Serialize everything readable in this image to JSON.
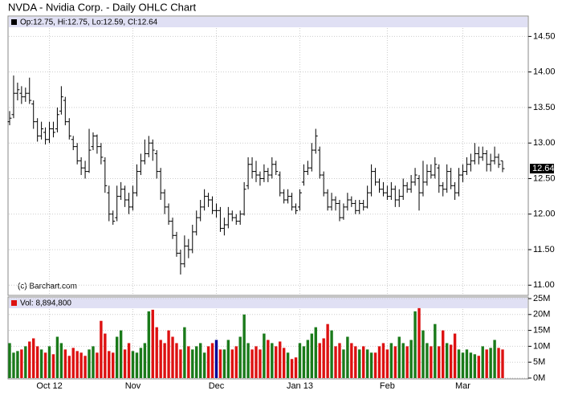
{
  "chart_data": {
    "type": "ohlc",
    "title": "NVDA - Nvidia Corp. - Daily OHLC Chart",
    "header": "Op:12.75, Hi:12.75, Lo:12.59, Cl:12.64",
    "credit": "(c) Barchart.com",
    "volume_header": "Vol: 8,894,800",
    "last_price": 12.64,
    "ylim": [
      10.89,
      14.64
    ],
    "yticks": [
      {
        "value": 11,
        "label": "11.00"
      },
      {
        "value": 11.5,
        "label": "11.50"
      },
      {
        "value": 12,
        "label": "12.00"
      },
      {
        "value": 12.5,
        "label": "12.50"
      },
      {
        "value": 13,
        "label": "13.00"
      },
      {
        "value": 13.5,
        "label": "13.50"
      },
      {
        "value": 14,
        "label": "14.00"
      },
      {
        "value": 14.5,
        "label": "14.50"
      }
    ],
    "vlim": [
      0,
      25
    ],
    "vticks": [
      {
        "value": 0,
        "label": "0M"
      },
      {
        "value": 5,
        "label": "5M"
      },
      {
        "value": 10,
        "label": "10M"
      },
      {
        "value": 15,
        "label": "15M"
      },
      {
        "value": 20,
        "label": "20M"
      },
      {
        "value": 25,
        "label": "25M"
      }
    ],
    "grid": true,
    "up_color": "#1a7a1a",
    "down_color": "#dd1111",
    "flat_color": "#000099",
    "categories": [
      null,
      null,
      null,
      null,
      null,
      null,
      null,
      null,
      null,
      null,
      "Oct 12",
      null,
      null,
      null,
      null,
      null,
      null,
      null,
      null,
      null,
      null,
      null,
      null,
      null,
      null,
      null,
      null,
      null,
      null,
      null,
      null,
      "Nov",
      null,
      null,
      null,
      null,
      null,
      null,
      null,
      null,
      null,
      null,
      null,
      null,
      null,
      null,
      null,
      null,
      null,
      null,
      null,
      null,
      "Dec",
      null,
      null,
      null,
      null,
      null,
      null,
      null,
      null,
      null,
      null,
      null,
      null,
      null,
      null,
      null,
      null,
      null,
      null,
      null,
      null,
      "Jan 13",
      null,
      null,
      null,
      null,
      null,
      null,
      null,
      null,
      null,
      null,
      null,
      null,
      null,
      null,
      null,
      null,
      null,
      null,
      null,
      null,
      null,
      "Feb",
      null,
      null,
      null,
      null,
      null,
      null,
      null,
      null,
      null,
      null,
      null,
      null,
      null,
      null,
      null,
      null,
      null,
      null,
      "Mar",
      null,
      null,
      null,
      null,
      null,
      null,
      null,
      null,
      null,
      null
    ],
    "ohlc": [
      [
        13.3,
        13.45,
        13.25,
        13.35
      ],
      [
        13.4,
        13.95,
        13.35,
        13.7
      ],
      [
        13.7,
        13.85,
        13.6,
        13.75
      ],
      [
        13.7,
        13.8,
        13.55,
        13.65
      ],
      [
        13.65,
        13.78,
        13.58,
        13.7
      ],
      [
        13.7,
        13.92,
        13.55,
        13.6
      ],
      [
        13.55,
        13.6,
        13.2,
        13.3
      ],
      [
        13.3,
        13.35,
        13.02,
        13.1
      ],
      [
        13.1,
        13.3,
        13.05,
        13.2
      ],
      [
        13.15,
        13.22,
        12.98,
        13.05
      ],
      [
        13.05,
        13.3,
        13.0,
        13.2
      ],
      [
        13.2,
        13.3,
        13.08,
        13.15
      ],
      [
        13.2,
        13.5,
        13.15,
        13.4
      ],
      [
        13.45,
        13.8,
        13.4,
        13.65
      ],
      [
        13.6,
        13.65,
        13.25,
        13.3
      ],
      [
        13.3,
        13.35,
        13.05,
        13.1
      ],
      [
        13.05,
        13.1,
        12.9,
        12.95
      ],
      [
        12.95,
        13.0,
        12.7,
        12.75
      ],
      [
        12.75,
        12.8,
        12.55,
        12.65
      ],
      [
        12.65,
        12.75,
        12.5,
        12.6
      ],
      [
        12.6,
        13.2,
        12.58,
        12.9
      ],
      [
        12.95,
        13.15,
        12.9,
        13.1
      ],
      [
        13.1,
        13.12,
        12.85,
        12.95
      ],
      [
        12.95,
        13.0,
        12.7,
        12.8
      ],
      [
        12.75,
        12.8,
        12.3,
        12.4
      ],
      [
        12.3,
        12.4,
        11.9,
        12.0
      ],
      [
        12.0,
        12.05,
        11.85,
        11.9
      ],
      [
        11.95,
        12.4,
        11.9,
        12.25
      ],
      [
        12.25,
        12.45,
        12.2,
        12.35
      ],
      [
        12.35,
        12.4,
        12.1,
        12.2
      ],
      [
        12.2,
        12.3,
        12.0,
        12.1
      ],
      [
        12.1,
        12.4,
        12.05,
        12.3
      ],
      [
        12.3,
        12.7,
        12.25,
        12.6
      ],
      [
        12.6,
        12.85,
        12.55,
        12.75
      ],
      [
        12.75,
        13.05,
        12.7,
        12.85
      ],
      [
        12.85,
        13.1,
        12.8,
        13.0
      ],
      [
        13.0,
        13.05,
        12.75,
        12.9
      ],
      [
        12.85,
        12.9,
        12.5,
        12.6
      ],
      [
        12.6,
        12.65,
        12.2,
        12.3
      ],
      [
        12.3,
        12.35,
        12.0,
        12.1
      ],
      [
        12.1,
        12.15,
        11.85,
        11.9
      ],
      [
        11.9,
        11.95,
        11.65,
        11.7
      ],
      [
        11.7,
        11.75,
        11.4,
        11.45
      ],
      [
        11.45,
        11.5,
        11.15,
        11.3
      ],
      [
        11.3,
        11.7,
        11.25,
        11.55
      ],
      [
        11.55,
        11.65,
        11.38,
        11.5
      ],
      [
        11.5,
        11.85,
        11.45,
        11.75
      ],
      [
        11.75,
        12.05,
        11.7,
        11.95
      ],
      [
        11.95,
        12.2,
        11.9,
        12.1
      ],
      [
        12.1,
        12.35,
        12.05,
        12.25
      ],
      [
        12.25,
        12.3,
        12.1,
        12.2
      ],
      [
        12.2,
        12.25,
        12.0,
        12.05
      ],
      [
        12.05,
        12.15,
        11.95,
        12.05
      ],
      [
        12.05,
        12.1,
        11.75,
        11.8
      ],
      [
        11.8,
        11.95,
        11.7,
        11.85
      ],
      [
        11.85,
        12.1,
        11.8,
        12.0
      ],
      [
        12.0,
        12.05,
        11.9,
        11.95
      ],
      [
        11.95,
        12.0,
        11.85,
        11.9
      ],
      [
        11.9,
        12.05,
        11.85,
        12.0
      ],
      [
        12.0,
        12.45,
        11.98,
        12.35
      ],
      [
        12.4,
        12.8,
        12.35,
        12.7
      ],
      [
        12.7,
        12.8,
        12.5,
        12.6
      ],
      [
        12.6,
        12.75,
        12.45,
        12.55
      ],
      [
        12.55,
        12.6,
        12.4,
        12.5
      ],
      [
        12.5,
        12.7,
        12.45,
        12.6
      ],
      [
        12.6,
        12.65,
        12.45,
        12.55
      ],
      [
        12.55,
        12.8,
        12.5,
        12.7
      ],
      [
        12.7,
        12.75,
        12.55,
        12.6
      ],
      [
        12.55,
        12.6,
        12.25,
        12.3
      ],
      [
        12.3,
        12.35,
        12.15,
        12.2
      ],
      [
        12.2,
        12.35,
        12.15,
        12.25
      ],
      [
        12.25,
        12.3,
        12.05,
        12.1
      ],
      [
        12.1,
        12.15,
        12.0,
        12.05
      ],
      [
        12.1,
        12.35,
        12.05,
        12.3
      ],
      [
        12.45,
        12.7,
        12.4,
        12.6
      ],
      [
        12.6,
        12.75,
        12.55,
        12.65
      ],
      [
        12.65,
        13.0,
        12.6,
        12.9
      ],
      [
        12.9,
        13.2,
        12.85,
        13.1
      ],
      [
        12.9,
        12.95,
        12.5,
        12.55
      ],
      [
        12.55,
        12.6,
        12.25,
        12.3
      ],
      [
        12.3,
        12.35,
        12.05,
        12.1
      ],
      [
        12.1,
        12.3,
        12.05,
        12.2
      ],
      [
        12.2,
        12.25,
        12.05,
        12.15
      ],
      [
        12.15,
        12.2,
        11.9,
        11.95
      ],
      [
        11.95,
        12.15,
        11.92,
        12.1
      ],
      [
        12.1,
        12.3,
        12.05,
        12.2
      ],
      [
        12.2,
        12.25,
        12.1,
        12.15
      ],
      [
        12.15,
        12.2,
        12.0,
        12.05
      ],
      [
        12.05,
        12.2,
        12.0,
        12.15
      ],
      [
        12.15,
        12.2,
        12.05,
        12.1
      ],
      [
        12.1,
        12.4,
        12.08,
        12.3
      ],
      [
        12.3,
        12.7,
        12.25,
        12.6
      ],
      [
        12.6,
        12.65,
        12.4,
        12.45
      ],
      [
        12.45,
        12.5,
        12.3,
        12.35
      ],
      [
        12.35,
        12.45,
        12.25,
        12.3
      ],
      [
        12.3,
        12.4,
        12.2,
        12.25
      ],
      [
        12.25,
        12.45,
        12.2,
        12.35
      ],
      [
        12.35,
        12.4,
        12.1,
        12.2
      ],
      [
        12.2,
        12.35,
        12.1,
        12.25
      ],
      [
        12.25,
        12.5,
        12.2,
        12.4
      ],
      [
        12.4,
        12.45,
        12.3,
        12.35
      ],
      [
        12.35,
        12.55,
        12.3,
        12.45
      ],
      [
        12.45,
        12.65,
        12.4,
        12.55
      ],
      [
        12.5,
        12.55,
        12.05,
        12.3
      ],
      [
        12.3,
        12.75,
        12.25,
        12.45
      ],
      [
        12.45,
        12.7,
        12.4,
        12.6
      ],
      [
        12.6,
        12.7,
        12.5,
        12.55
      ],
      [
        12.55,
        12.8,
        12.5,
        12.7
      ],
      [
        12.65,
        12.7,
        12.3,
        12.4
      ],
      [
        12.4,
        12.45,
        12.25,
        12.35
      ],
      [
        12.35,
        12.7,
        12.3,
        12.6
      ],
      [
        12.6,
        12.65,
        12.35,
        12.4
      ],
      [
        12.4,
        12.45,
        12.2,
        12.3
      ],
      [
        12.3,
        12.65,
        12.25,
        12.55
      ],
      [
        12.55,
        12.7,
        12.45,
        12.6
      ],
      [
        12.6,
        12.8,
        12.55,
        12.7
      ],
      [
        12.7,
        12.85,
        12.6,
        12.75
      ],
      [
        12.75,
        13.0,
        12.7,
        12.85
      ],
      [
        12.85,
        12.95,
        12.7,
        12.8
      ],
      [
        12.8,
        12.95,
        12.75,
        12.85
      ],
      [
        12.85,
        12.9,
        12.6,
        12.7
      ],
      [
        12.7,
        12.85,
        12.6,
        12.75
      ],
      [
        12.75,
        12.95,
        12.7,
        12.8
      ],
      [
        12.8,
        12.85,
        12.65,
        12.7
      ],
      [
        12.75,
        12.75,
        12.59,
        12.64
      ]
    ],
    "volume": [
      11,
      8,
      8.5,
      9,
      10,
      11.5,
      12.5,
      10,
      9,
      8,
      10,
      7.5,
      13,
      11,
      9,
      7,
      9.5,
      8.5,
      8,
      7,
      9,
      10,
      8,
      18,
      14,
      8.5,
      8,
      13,
      15,
      9,
      11,
      8.5,
      8,
      9.5,
      11,
      21,
      21.5,
      16,
      12,
      11,
      15,
      13,
      11,
      9,
      16,
      10,
      9,
      10,
      11,
      8,
      10,
      11,
      12,
      9,
      9,
      12,
      9,
      10,
      13,
      20,
      11,
      9,
      10,
      9,
      14,
      12,
      11,
      10,
      11.5,
      9.5,
      8,
      6,
      6.5,
      11,
      10,
      12,
      14,
      16,
      11,
      12.5,
      17,
      15,
      10,
      11,
      9,
      13,
      11,
      10,
      9,
      10,
      9,
      8,
      8,
      10,
      11,
      9,
      11,
      10,
      13,
      11,
      10,
      12,
      21,
      22,
      15,
      11,
      10,
      17,
      10,
      15,
      11,
      10.5,
      14,
      9,
      8,
      9,
      8,
      7.5,
      7,
      10,
      9,
      9.5,
      12,
      9.5,
      9
    ]
  }
}
